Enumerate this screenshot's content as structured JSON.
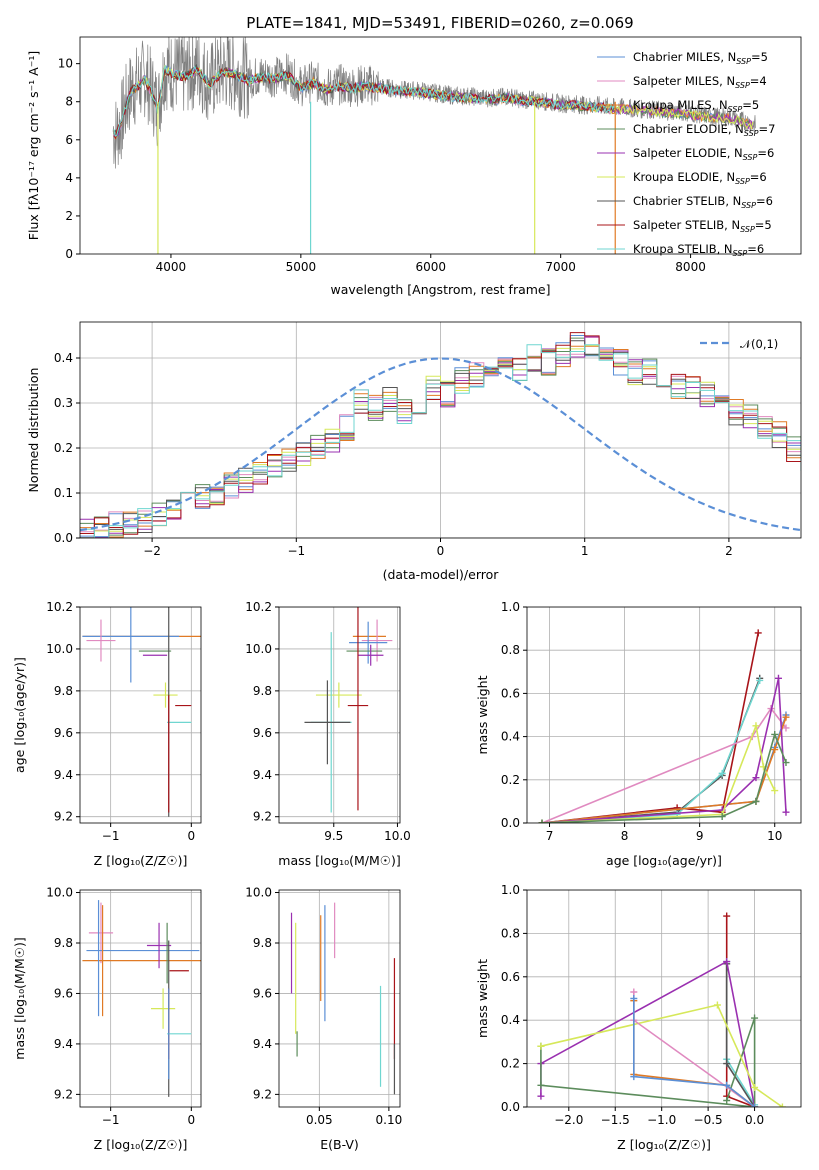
{
  "title": "PLATE=1841, MJD=53491, FIBERID=0260, z=0.069",
  "colors": {
    "Chabrier MILES": "#5b8fd6",
    "Salpeter MILES": "#e08ac0",
    "Kroupa MILES": "#e07a25",
    "Chabrier ELODIE": "#5c8c5c",
    "Salpeter ELODIE": "#9a30b0",
    "Kroupa ELODIE": "#d6e85a",
    "Chabrier STELIB": "#555555",
    "Salpeter STELIB": "#a8141a",
    "Kroupa STELIB": "#6fd6d0",
    "data": "#808080",
    "normal": "#5b8fd6"
  },
  "chart_data": [
    {
      "type": "line",
      "xlabel": "wavelength [Angstrom, rest frame]",
      "ylabel": "Flux [f_λ 10^-17 erg cm^-2 s^-1 A^-1]",
      "xlim": [
        3300,
        8850
      ],
      "ylim": [
        0,
        11.4
      ],
      "xticks": [
        4000,
        5000,
        6000,
        7000,
        8000
      ],
      "yticks": [
        0,
        2,
        4,
        6,
        8,
        10
      ],
      "legend_position": "top-right",
      "series": [
        {
          "name": "Chabrier MILES, N_SSP=5"
        },
        {
          "name": "Salpeter MILES, N_SSP=4"
        },
        {
          "name": "Kroupa MILES, N_SSP=5"
        },
        {
          "name": "Chabrier ELODIE, N_SSP=7"
        },
        {
          "name": "Salpeter ELODIE, N_SSP=6"
        },
        {
          "name": "Kroupa ELODIE, N_SSP=6"
        },
        {
          "name": "Chabrier STELIB, N_SSP=6"
        },
        {
          "name": "Salpeter STELIB, N_SSP=5"
        },
        {
          "name": "Kroupa STELIB, N_SSP=6"
        }
      ],
      "data_x": [
        3550,
        3580,
        3620,
        3660,
        3700,
        3750,
        3800,
        3850,
        3900,
        3950,
        4000,
        4100,
        4200,
        4300,
        4400,
        4500,
        4600,
        4700,
        4800,
        4900,
        5000,
        5100,
        5200,
        5300,
        5400,
        5500,
        5600,
        5700,
        5800,
        5900,
        6000,
        6100,
        6200,
        6300,
        6400,
        6500,
        6600,
        6700,
        6800,
        6900,
        7000,
        7100,
        7200,
        7300,
        7400,
        7500,
        7600,
        7700,
        7800,
        7900,
        8000,
        8100,
        8200,
        8300,
        8400,
        8500
      ],
      "data_y": [
        6.5,
        6.3,
        7.0,
        8.0,
        8.7,
        8.9,
        9.3,
        8.6,
        7.6,
        9.8,
        9.6,
        9.4,
        9.8,
        9.0,
        9.7,
        9.5,
        9.2,
        9.4,
        9.3,
        9.5,
        8.8,
        9.1,
        8.7,
        8.9,
        8.8,
        8.9,
        8.8,
        8.7,
        8.6,
        8.6,
        8.5,
        8.4,
        8.3,
        8.3,
        8.2,
        8.2,
        8.3,
        8.1,
        8.1,
        8.0,
        7.9,
        7.9,
        7.8,
        7.8,
        7.7,
        7.7,
        7.6,
        7.6,
        7.5,
        7.5,
        7.4,
        7.3,
        7.2,
        7.2,
        7.0,
        6.8
      ]
    },
    {
      "type": "histogram",
      "xlabel": "(data-model)/error",
      "ylabel": "Normed distribution",
      "xlim": [
        -2.5,
        2.5
      ],
      "ylim": [
        0,
        0.48
      ],
      "xticks": [
        -2,
        -1,
        0,
        1,
        2
      ],
      "yticks": [
        0,
        0.1,
        0.2,
        0.3,
        0.4
      ],
      "legend_position": "top-right",
      "legend": "𝒩(0,1)",
      "bin_edges_start": -2.5,
      "bin_width": 0.1,
      "base_values": [
        0.02,
        0.025,
        0.03,
        0.032,
        0.04,
        0.05,
        0.062,
        0.075,
        0.09,
        0.1,
        0.115,
        0.13,
        0.145,
        0.16,
        0.175,
        0.19,
        0.205,
        0.22,
        0.245,
        0.3,
        0.29,
        0.305,
        0.28,
        0.3,
        0.33,
        0.32,
        0.35,
        0.36,
        0.37,
        0.38,
        0.37,
        0.4,
        0.39,
        0.41,
        0.43,
        0.42,
        0.42,
        0.39,
        0.37,
        0.37,
        0.36,
        0.34,
        0.33,
        0.32,
        0.3,
        0.28,
        0.27,
        0.25,
        0.23,
        0.2,
        0.18,
        0.17,
        0.14,
        0.13,
        0.12,
        0.1,
        0.085,
        0.07,
        0.06,
        0.045,
        0.04,
        0.035,
        0.03,
        0.025,
        0.02,
        0.02,
        0.015,
        0.02,
        0.02,
        0.018
      ]
    },
    {
      "type": "scatter",
      "xlabel": "Z [log10(Z/Z☉)]",
      "ylabel": "age [log10(age/yr)]",
      "xlim": [
        -1.38,
        0.12
      ],
      "ylim": [
        9.17,
        10.2
      ],
      "xticks": [
        -1,
        0
      ],
      "yticks": [
        9.2,
        9.4,
        9.6,
        9.8,
        10.0,
        10.2
      ],
      "points": [
        {
          "model": "Kroupa MILES",
          "x": -0.55,
          "y": 10.06,
          "xerr": 0.8,
          "yerr": 0.0
        },
        {
          "model": "Chabrier MILES",
          "x": -0.75,
          "y": 10.06,
          "xerr": 0.6,
          "yerr": 0.22
        },
        {
          "model": "Salpeter MILES",
          "x": -1.12,
          "y": 10.04,
          "xerr": 0.18,
          "yerr": 0.1
        },
        {
          "model": "Salpeter ELODIE",
          "x": -0.45,
          "y": 9.97,
          "xerr": 0.15,
          "yerr": 0.0
        },
        {
          "model": "Chabrier ELODIE",
          "x": -0.45,
          "y": 9.99,
          "xerr": 0.2,
          "yerr": 0.0
        },
        {
          "model": "Kroupa ELODIE",
          "x": -0.32,
          "y": 9.78,
          "xerr": 0.15,
          "yerr": 0.06
        },
        {
          "model": "Salpeter STELIB",
          "x": -0.1,
          "y": 9.73,
          "xerr": 0.1,
          "yerr": 0.0
        },
        {
          "model": "Kroupa STELIB",
          "x": -0.15,
          "y": 9.65,
          "xerr": 0.15,
          "yerr": 0.0
        },
        {
          "model": "Chabrier STELIB",
          "x": -0.28,
          "y": 9.7,
          "xerr": 0.0,
          "yerr": 0.5
        },
        {
          "model": "Salpeter STELIB",
          "x": -0.28,
          "y": 9.5,
          "xerr": 0.0,
          "yerr": 0.28
        }
      ]
    },
    {
      "type": "scatter",
      "xlabel": "mass [log10(M/M☉)]",
      "ylabel": "",
      "xlim": [
        9.07,
        10.02
      ],
      "ylim": [
        9.17,
        10.2
      ],
      "xticks": [
        9.5,
        10.0
      ],
      "yticks": [
        9.2,
        9.4,
        9.6,
        9.8,
        10.0,
        10.2
      ],
      "points": [
        {
          "model": "Kroupa MILES",
          "x": 9.78,
          "y": 10.06,
          "xerr": 0.13,
          "yerr": 0.0
        },
        {
          "model": "Salpeter MILES",
          "x": 9.84,
          "y": 10.04,
          "xerr": 0.12,
          "yerr": 0.1
        },
        {
          "model": "Chabrier MILES",
          "x": 9.77,
          "y": 10.03,
          "xerr": 0.15,
          "yerr": 0.1
        },
        {
          "model": "Chabrier ELODIE",
          "x": 9.74,
          "y": 9.99,
          "xerr": 0.14,
          "yerr": 0.0
        },
        {
          "model": "Salpeter ELODIE",
          "x": 9.79,
          "y": 9.97,
          "xerr": 0.1,
          "yerr": 0.05
        },
        {
          "model": "Kroupa ELODIE",
          "x": 9.54,
          "y": 9.78,
          "xerr": 0.18,
          "yerr": 0.06
        },
        {
          "model": "Salpeter STELIB",
          "x": 9.69,
          "y": 9.73,
          "xerr": 0.08,
          "yerr": 0.5
        },
        {
          "model": "Kroupa STELIB",
          "x": 9.48,
          "y": 9.65,
          "xerr": 0.16,
          "yerr": 0.43
        },
        {
          "model": "Chabrier STELIB",
          "x": 9.45,
          "y": 9.65,
          "xerr": 0.18,
          "yerr": 0.2
        }
      ]
    },
    {
      "type": "line",
      "xlabel": "age [log10(age/yr)]",
      "ylabel": "mass weight",
      "xlim": [
        6.7,
        10.35
      ],
      "ylim": [
        0,
        1.0
      ],
      "xticks": [
        7,
        8,
        9,
        10
      ],
      "yticks": [
        0.0,
        0.2,
        0.4,
        0.6,
        0.8,
        1.0
      ],
      "series": [
        {
          "model": "Salpeter STELIB",
          "x": [
            6.9,
            8.7,
            9.3,
            9.78
          ],
          "y": [
            0.0,
            0.07,
            0.05,
            0.88
          ]
        },
        {
          "model": "Chabrier STELIB",
          "x": [
            6.9,
            8.7,
            9.3,
            9.8
          ],
          "y": [
            0.0,
            0.05,
            0.22,
            0.67
          ]
        },
        {
          "model": "Kroupa STELIB",
          "x": [
            6.9,
            8.7,
            9.3,
            9.8
          ],
          "y": [
            0.0,
            0.04,
            0.23,
            0.66
          ]
        },
        {
          "model": "Salpeter MILES",
          "x": [
            6.9,
            9.7,
            9.95,
            10.15
          ],
          "y": [
            0.0,
            0.4,
            0.53,
            0.44
          ]
        },
        {
          "model": "Chabrier MILES",
          "x": [
            6.9,
            9.75,
            10.0,
            10.15
          ],
          "y": [
            0.0,
            0.1,
            0.35,
            0.5
          ]
        },
        {
          "model": "Kroupa MILES",
          "x": [
            6.9,
            9.75,
            10.0,
            10.15
          ],
          "y": [
            0.0,
            0.1,
            0.34,
            0.49
          ]
        },
        {
          "model": "Salpeter ELODIE",
          "x": [
            6.9,
            9.3,
            9.75,
            10.05,
            10.15
          ],
          "y": [
            0.0,
            0.06,
            0.21,
            0.67,
            0.05
          ]
        },
        {
          "model": "Kroupa ELODIE",
          "x": [
            6.9,
            9.3,
            9.75,
            9.85,
            10.0
          ],
          "y": [
            0.0,
            0.04,
            0.45,
            0.26,
            0.15
          ]
        },
        {
          "model": "Chabrier ELODIE",
          "x": [
            6.9,
            9.3,
            9.75,
            10.0,
            10.15
          ],
          "y": [
            0.0,
            0.03,
            0.1,
            0.41,
            0.28
          ]
        }
      ]
    },
    {
      "type": "scatter",
      "xlabel": "Z [log10(Z/Z☉)]",
      "ylabel": "mass [log10(M/M☉)]",
      "xlim": [
        -1.38,
        0.12
      ],
      "ylim": [
        9.15,
        10.01
      ],
      "xticks": [
        -1,
        0
      ],
      "yticks": [
        9.2,
        9.4,
        9.6,
        9.8,
        10.0
      ],
      "points": [
        {
          "model": "Salpeter MILES",
          "x": -1.12,
          "y": 9.84,
          "xerr": 0.15,
          "yerr": 0.12
        },
        {
          "model": "Chabrier MILES",
          "x": -0.6,
          "y": 9.77,
          "xerr": 0.7,
          "yerr": 0.0
        },
        {
          "model": "Kroupa MILES",
          "x": -0.55,
          "y": 9.73,
          "xerr": 0.8,
          "yerr": 0.0
        },
        {
          "model": "Chabrier MILES",
          "x": -1.15,
          "y": 9.74,
          "xerr": 0.0,
          "yerr": 0.23
        },
        {
          "model": "Kroupa MILES",
          "x": -1.1,
          "y": 9.73,
          "xerr": 0.0,
          "yerr": 0.22
        },
        {
          "model": "Salpeter ELODIE",
          "x": -0.4,
          "y": 9.79,
          "xerr": 0.15,
          "yerr": 0.09
        },
        {
          "model": "Chabrier ELODIE",
          "x": -0.3,
          "y": 9.76,
          "xerr": 0.0,
          "yerr": 0.12
        },
        {
          "model": "Kroupa ELODIE",
          "x": -0.35,
          "y": 9.54,
          "xerr": 0.15,
          "yerr": 0.08
        },
        {
          "model": "Salpeter STELIB",
          "x": -0.15,
          "y": 9.69,
          "xerr": 0.12,
          "yerr": 0.0
        },
        {
          "model": "Chabrier STELIB",
          "x": -0.28,
          "y": 9.5,
          "xerr": 0.0,
          "yerr": 0.31
        },
        {
          "model": "Salpeter STELIB",
          "x": -0.28,
          "y": 9.48,
          "xerr": 0.0,
          "yerr": 0.14
        },
        {
          "model": "Kroupa STELIB",
          "x": -0.15,
          "y": 9.44,
          "xerr": 0.15,
          "yerr": 0.0
        },
        {
          "model": "Chabrier MILES",
          "x": -0.28,
          "y": 9.44,
          "xerr": 0.0,
          "yerr": 0.18
        }
      ]
    },
    {
      "type": "scatter",
      "xlabel": "E(B-V)",
      "ylabel": "",
      "xlim": [
        0.021,
        0.108
      ],
      "ylim": [
        9.15,
        10.01
      ],
      "xticks": [
        0.05,
        0.1
      ],
      "yticks": [
        9.2,
        9.4,
        9.6,
        9.8,
        10.0
      ],
      "points": [
        {
          "model": "Salpeter ELODIE",
          "x": 0.03,
          "y": 9.76,
          "xerr": 0.0,
          "yerr": 0.16
        },
        {
          "model": "Kroupa ELODIE",
          "x": 0.033,
          "y": 9.66,
          "xerr": 0.0,
          "yerr": 0.22
        },
        {
          "model": "Chabrier ELODIE",
          "x": 0.034,
          "y": 9.4,
          "xerr": 0.0,
          "yerr": 0.05
        },
        {
          "model": "Kroupa MILES",
          "x": 0.051,
          "y": 9.74,
          "xerr": 0.0,
          "yerr": 0.17
        },
        {
          "model": "Chabrier MILES",
          "x": 0.054,
          "y": 9.72,
          "xerr": 0.0,
          "yerr": 0.23
        },
        {
          "model": "Salpeter MILES",
          "x": 0.061,
          "y": 9.85,
          "xerr": 0.0,
          "yerr": 0.11
        },
        {
          "model": "Kroupa STELIB",
          "x": 0.094,
          "y": 9.43,
          "xerr": 0.0,
          "yerr": 0.2
        },
        {
          "model": "Salpeter STELIB",
          "x": 0.104,
          "y": 9.54,
          "xerr": 0.0,
          "yerr": 0.2
        },
        {
          "model": "Chabrier STELIB",
          "x": 0.104,
          "y": 9.3,
          "xerr": 0.0,
          "yerr": 0.1
        }
      ]
    },
    {
      "type": "line",
      "xlabel": "Z [log10(Z/Z☉)]",
      "ylabel": "mass weight",
      "xlim": [
        -2.45,
        0.5
      ],
      "ylim": [
        0,
        1.0
      ],
      "xticks": [
        -2.0,
        -1.5,
        -1.0,
        -0.5,
        0.0
      ],
      "yticks": [
        0.0,
        0.2,
        0.4,
        0.6,
        0.8,
        1.0
      ],
      "series": [
        {
          "model": "Salpeter STELIB",
          "x": [
            -0.3,
            -0.3,
            0.0
          ],
          "y": [
            0.88,
            0.05,
            0.0
          ]
        },
        {
          "model": "Kroupa STELIB",
          "x": [
            -0.3,
            -0.3,
            0.0
          ],
          "y": [
            0.67,
            0.22,
            0.01
          ]
        },
        {
          "model": "Chabrier STELIB",
          "x": [
            -0.3,
            -0.3,
            0.0
          ],
          "y": [
            0.66,
            0.2,
            0.0
          ]
        },
        {
          "model": "Salpeter ELODIE",
          "x": [
            -2.3,
            -2.3,
            -0.3,
            0.0
          ],
          "y": [
            0.05,
            0.2,
            0.67,
            0.0
          ]
        },
        {
          "model": "Chabrier ELODIE",
          "x": [
            -2.3,
            -2.3,
            0.0,
            0.0,
            -0.3
          ],
          "y": [
            0.28,
            0.1,
            0.0,
            0.41,
            0.03
          ]
        },
        {
          "model": "Kroupa ELODIE",
          "x": [
            -2.3,
            -0.4,
            0.0,
            0.3
          ],
          "y": [
            0.28,
            0.47,
            0.09,
            0.0
          ]
        },
        {
          "model": "Salpeter MILES",
          "x": [
            -1.3,
            -1.3,
            0.0
          ],
          "y": [
            0.53,
            0.4,
            0.0
          ]
        },
        {
          "model": "Kroupa MILES",
          "x": [
            -1.3,
            -1.3,
            -0.3,
            0.0
          ],
          "y": [
            0.49,
            0.15,
            0.1,
            0.0
          ]
        },
        {
          "model": "Chabrier MILES",
          "x": [
            -1.3,
            -1.3,
            -0.3,
            0.0
          ],
          "y": [
            0.5,
            0.14,
            0.1,
            0.0
          ]
        }
      ]
    }
  ]
}
